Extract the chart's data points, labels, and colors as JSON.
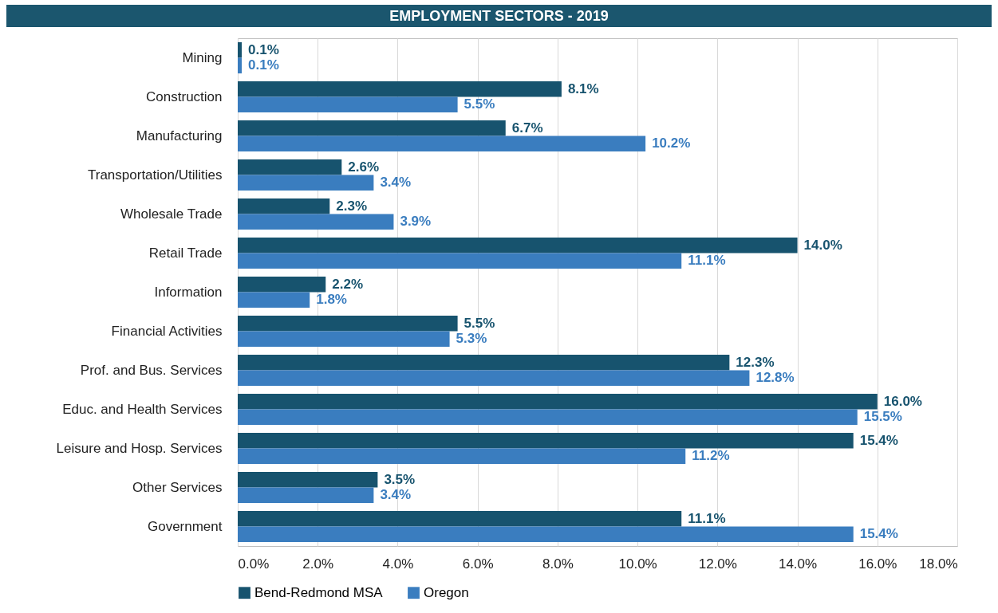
{
  "chart_data": {
    "type": "bar",
    "orientation": "horizontal",
    "title": "EMPLOYMENT SECTORS - 2019",
    "categories": [
      "Mining",
      "Construction",
      "Manufacturing",
      "Transportation/Utilities",
      "Wholesale Trade",
      "Retail Trade",
      "Information",
      "Financial Activities",
      "Prof. and Bus. Services",
      "Educ. and Health Services",
      "Leisure and Hosp. Services",
      "Other Services",
      "Government"
    ],
    "series": [
      {
        "name": "Bend-Redmond MSA",
        "color": "#17536e",
        "values": [
          0.1,
          8.1,
          6.7,
          2.6,
          2.3,
          14.0,
          2.2,
          5.5,
          12.3,
          16.0,
          15.4,
          3.5,
          11.1
        ],
        "value_labels": [
          "0.1%",
          "8.1%",
          "6.7%",
          "2.6%",
          "2.3%",
          "14.0%",
          "2.2%",
          "5.5%",
          "12.3%",
          "16.0%",
          "15.4%",
          "3.5%",
          "11.1%"
        ]
      },
      {
        "name": "Oregon",
        "color": "#3a7dbf",
        "values": [
          0.1,
          5.5,
          10.2,
          3.4,
          3.9,
          11.1,
          1.8,
          5.3,
          12.8,
          15.5,
          11.2,
          3.4,
          15.4
        ],
        "value_labels": [
          "0.1%",
          "5.5%",
          "10.2%",
          "3.4%",
          "3.9%",
          "11.1%",
          "1.8%",
          "5.3%",
          "12.8%",
          "15.5%",
          "11.2%",
          "3.4%",
          "15.4%"
        ]
      }
    ],
    "xlim": [
      0,
      18
    ],
    "xticks": [
      {
        "value": 0,
        "label": "0.0%"
      },
      {
        "value": 2,
        "label": "2.0%"
      },
      {
        "value": 4,
        "label": "4.0%"
      },
      {
        "value": 6,
        "label": "6.0%"
      },
      {
        "value": 8,
        "label": "8.0%"
      },
      {
        "value": 10,
        "label": "10.0%"
      },
      {
        "value": 12,
        "label": "12.0%"
      },
      {
        "value": 14,
        "label": "14.0%"
      },
      {
        "value": 16,
        "label": "16.0%"
      },
      {
        "value": 18,
        "label": "18.0%"
      }
    ],
    "grid": "x",
    "legend": "bottom"
  }
}
